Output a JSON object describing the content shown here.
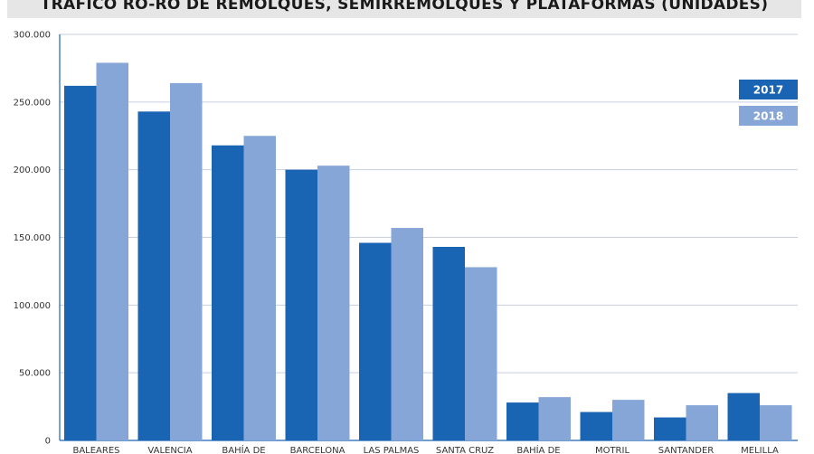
{
  "title": "TRÁFICO RO-RO DE REMOLQUES, SEMIRREMOLQUES Y PLATAFORMAS (UNIDADES)",
  "colors": {
    "series_2017": "#1a64b4",
    "series_2018": "#87a6d8",
    "grid": "#c8cfe0",
    "axis": "#1a64b4"
  },
  "chart_data": {
    "type": "bar",
    "title": "TRÁFICO RO-RO DE REMOLQUES, SEMIRREMOLQUES Y PLATAFORMAS (UNIDADES)",
    "categories": [
      "BALEARES",
      "VALENCIA",
      "BAHÍA DE",
      "BARCELONA",
      "LAS PALMAS",
      "SANTA CRUZ",
      "BAHÍA DE",
      "MOTRIL",
      "SANTANDER",
      "MELILLA"
    ],
    "series": [
      {
        "name": "2017",
        "values": [
          262000,
          243000,
          218000,
          200000,
          146000,
          143000,
          28000,
          21000,
          17000,
          35000
        ]
      },
      {
        "name": "2018",
        "values": [
          279000,
          264000,
          225000,
          203000,
          157000,
          128000,
          32000,
          30000,
          26000,
          26000
        ]
      }
    ],
    "ylim": [
      0,
      300000
    ],
    "yticks": [
      0,
      50000,
      100000,
      150000,
      200000,
      250000,
      300000
    ],
    "ytick_labels": [
      "0",
      "50.000",
      "100.000",
      "150.000",
      "200.000",
      "250.000",
      "300.000"
    ],
    "grid": true,
    "legend_position": "top-right",
    "xlabel": "",
    "ylabel": ""
  }
}
